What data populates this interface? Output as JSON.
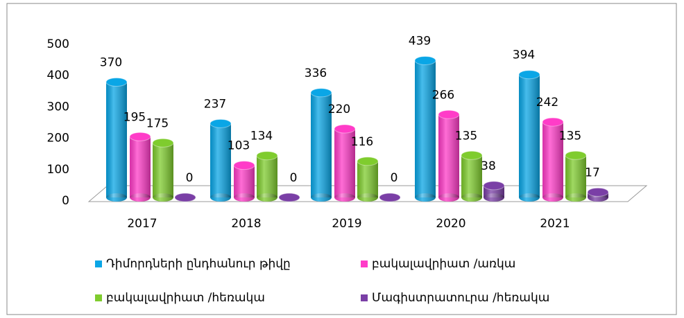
{
  "chart_data": {
    "type": "bar",
    "categories": [
      "2017",
      "2018",
      "2019",
      "2020",
      "2021"
    ],
    "series": [
      {
        "name": "Դիմորդների ընդհանուր թիվը",
        "color": "#0aa6e6",
        "values": [
          370,
          237,
          336,
          439,
          394
        ]
      },
      {
        "name": "բակալավրիատ /առկա",
        "color": "#ff3cc8",
        "values": [
          195,
          103,
          220,
          266,
          242
        ]
      },
      {
        "name": "բակալավրիատ /հեռակա",
        "color": "#7fcc2e",
        "values": [
          175,
          134,
          116,
          135,
          135
        ]
      },
      {
        "name": "Մագիստրատուրա /հեռակա",
        "color": "#7a3fa6",
        "values": [
          0,
          0,
          0,
          38,
          17
        ]
      }
    ],
    "ylim": [
      0,
      500
    ],
    "yticks": [
      0,
      100,
      200,
      300,
      400,
      500
    ],
    "legend": "bottom"
  }
}
